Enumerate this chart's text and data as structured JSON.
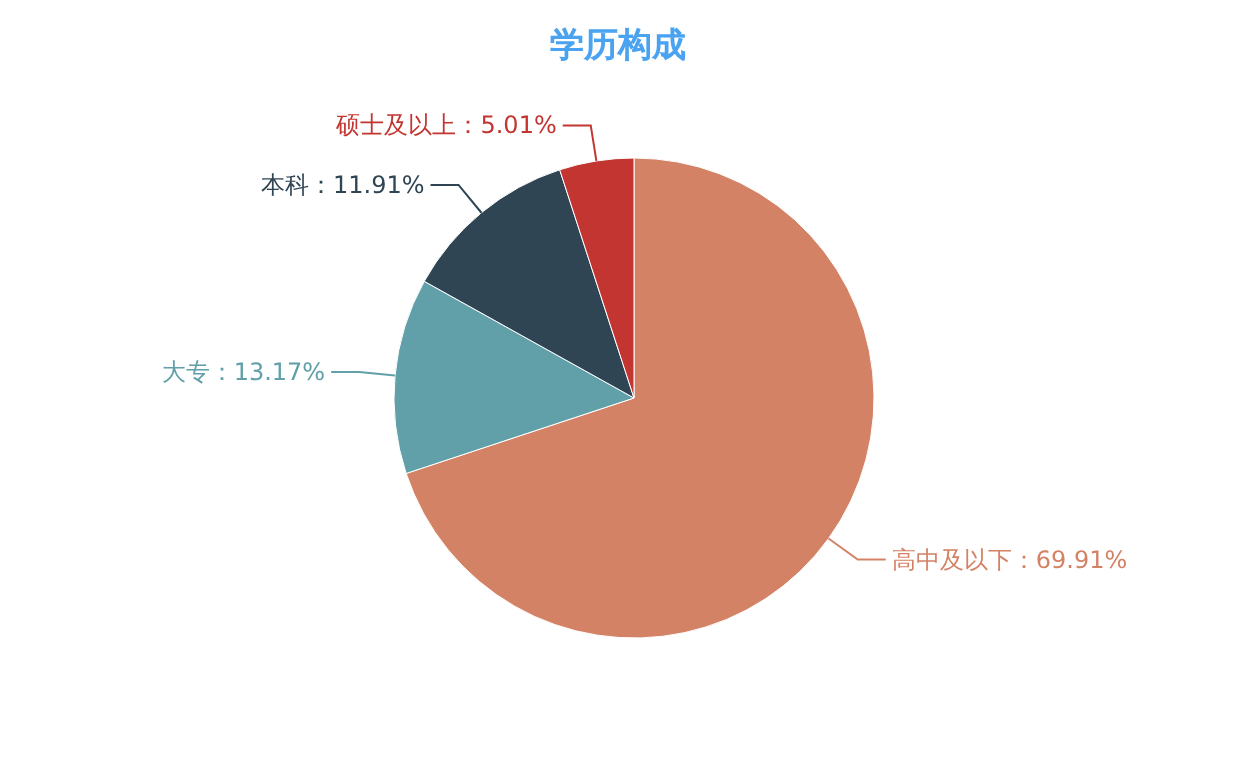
{
  "chart_data": {
    "type": "pie",
    "title": "学历构成",
    "categories": [
      "高中及以下",
      "大专",
      "本科",
      "硕士及以上"
    ],
    "values": [
      69.91,
      13.17,
      11.91,
      5.01
    ],
    "value_labels": [
      "：69.91%",
      "：13.17%",
      "：11.91%",
      "：5.01%"
    ],
    "colors": [
      "#d48265",
      "#61a0a8",
      "#2f4554",
      "#c23531"
    ]
  }
}
